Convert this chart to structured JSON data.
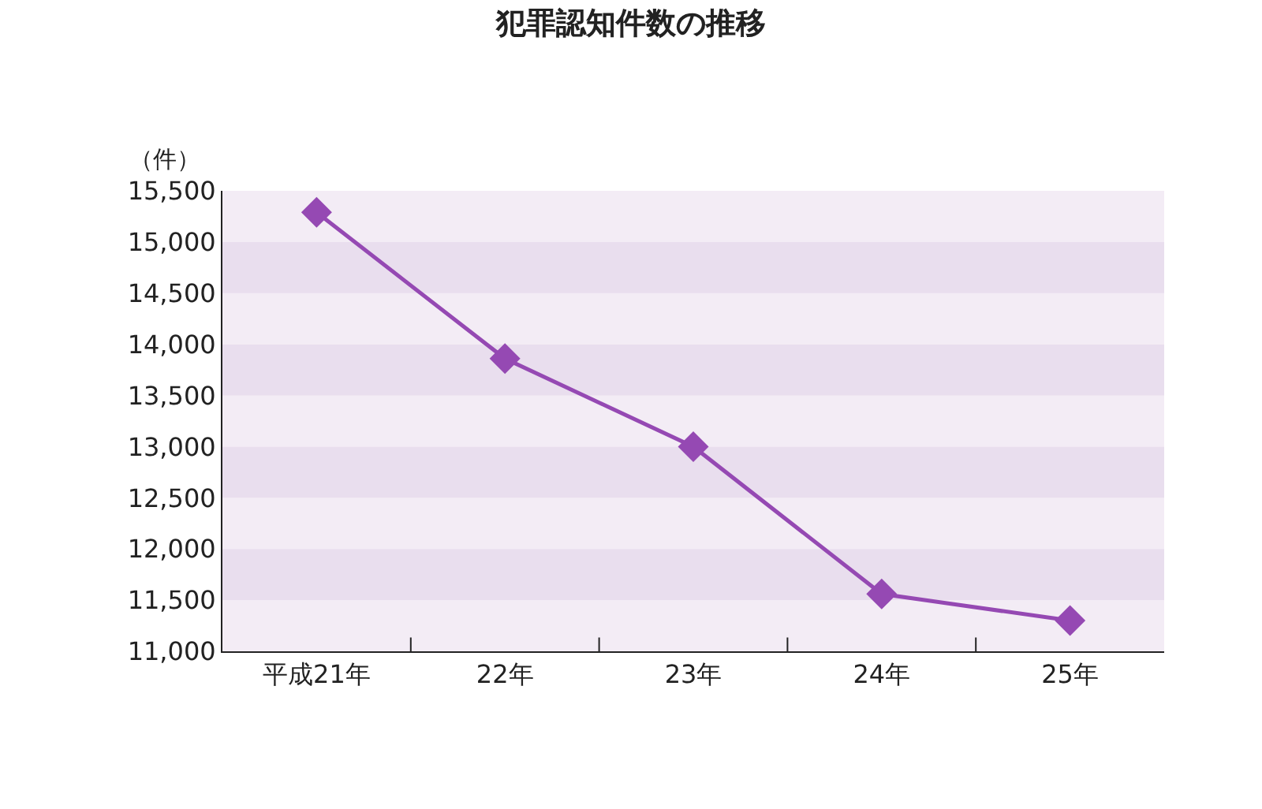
{
  "chart_data": {
    "type": "line",
    "title": "犯罪認知件数の推移",
    "ylabel": "（件）",
    "categories": [
      "平成21年",
      "22年",
      "23年",
      "24年",
      "25年"
    ],
    "series": [
      {
        "color": "#9549b3",
        "values": [
          15290,
          13860,
          13000,
          11560,
          11300
        ]
      }
    ],
    "ylim": [
      11000,
      15500
    ],
    "yticks": [
      {
        "value": 11000,
        "label": "11,000"
      },
      {
        "value": 11500,
        "label": "11,500"
      },
      {
        "value": 12000,
        "label": "12,000"
      },
      {
        "value": 12500,
        "label": "12,500"
      },
      {
        "value": 13000,
        "label": "13,000"
      },
      {
        "value": 13500,
        "label": "13,500"
      },
      {
        "value": 14000,
        "label": "14,000"
      },
      {
        "value": 14500,
        "label": "14,500"
      },
      {
        "value": 15000,
        "label": "15,000"
      },
      {
        "value": 15500,
        "label": "15,500"
      }
    ],
    "marker": "diamond",
    "line_style": "solid"
  }
}
